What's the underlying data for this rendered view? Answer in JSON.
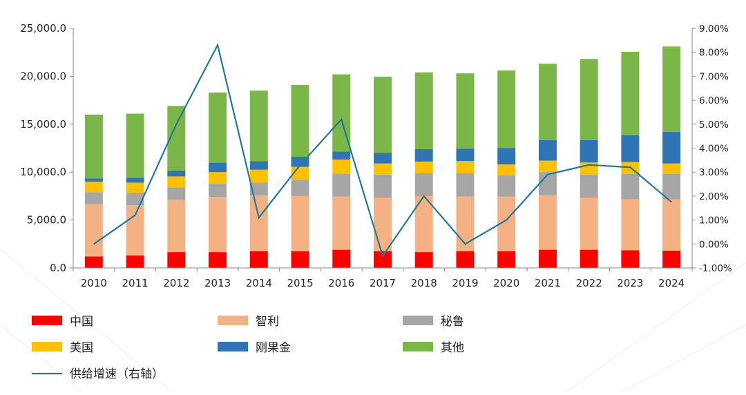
{
  "chart_data": {
    "type": "bar",
    "stacked": true,
    "categories": [
      "2010",
      "2011",
      "2012",
      "2013",
      "2014",
      "2015",
      "2016",
      "2017",
      "2018",
      "2019",
      "2020",
      "2021",
      "2022",
      "2023",
      "2024"
    ],
    "series": [
      {
        "name": "中国",
        "color": "#ff0000",
        "values": [
          1200,
          1300,
          1650,
          1650,
          1750,
          1750,
          1900,
          1750,
          1650,
          1750,
          1750,
          1900,
          1900,
          1850,
          1800
        ]
      },
      {
        "name": "智利",
        "color": "#f4b183",
        "values": [
          5450,
          5250,
          5450,
          5750,
          5800,
          5750,
          5550,
          5550,
          5850,
          5700,
          5700,
          5700,
          5400,
          5300,
          5350
        ]
      },
      {
        "name": "秘鲁",
        "color": "#a6a6a6",
        "values": [
          1250,
          1300,
          1300,
          1400,
          1350,
          1700,
          2400,
          2450,
          2400,
          2450,
          2200,
          2400,
          2450,
          2650,
          2650
        ]
      },
      {
        "name": "美国",
        "color": "#ffc000",
        "values": [
          1100,
          1050,
          1150,
          1200,
          1350,
          1350,
          1450,
          1150,
          1200,
          1250,
          1150,
          1200,
          1250,
          1250,
          1100
        ]
      },
      {
        "name": "刚果金",
        "color": "#2e75b6",
        "values": [
          350,
          500,
          600,
          1000,
          900,
          1050,
          850,
          1100,
          1300,
          1300,
          1700,
          2150,
          2350,
          2800,
          3300
        ]
      },
      {
        "name": "其他",
        "color": "#7ab648",
        "values": [
          6650,
          6700,
          6750,
          7300,
          7350,
          7500,
          8050,
          7950,
          8000,
          7850,
          8100,
          7950,
          8450,
          8700,
          8900
        ]
      }
    ],
    "line_series": {
      "name": "供给增速（右轴）",
      "color": "#1f7a99",
      "axis": "right",
      "values": [
        0.0,
        1.2,
        5.0,
        8.3,
        1.1,
        3.3,
        5.2,
        -0.5,
        2.0,
        0.0,
        1.0,
        2.9,
        3.3,
        3.2,
        1.75
      ]
    },
    "left_axis": {
      "min": 0,
      "max": 25000,
      "ticks": [
        "0.0",
        "5,000.0",
        "10,000.0",
        "15,000.0",
        "20,000.0",
        "25,000.0"
      ]
    },
    "right_axis": {
      "min": -1,
      "max": 9,
      "ticks": [
        "-1.00%",
        "0.00%",
        "1.00%",
        "2.00%",
        "3.00%",
        "4.00%",
        "5.00%",
        "6.00%",
        "7.00%",
        "8.00%",
        "9.00%"
      ]
    },
    "grid": false,
    "legend_position": "bottom",
    "legend": [
      [
        "中国",
        "智利",
        "秘鲁"
      ],
      [
        "美国",
        "刚果金",
        "其他"
      ],
      [
        "供给增速（右轴）"
      ]
    ]
  }
}
